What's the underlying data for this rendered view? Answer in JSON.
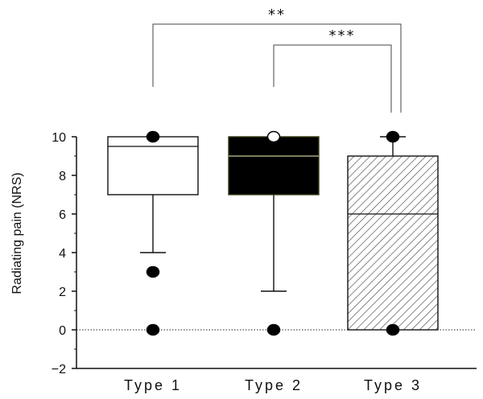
{
  "chart_data": {
    "type": "box",
    "ylabel": "Radiating pain (NRS)",
    "ylim": [
      -2,
      10
    ],
    "yticks": [
      "−2",
      "0",
      "2",
      "4",
      "6",
      "8",
      "10"
    ],
    "ytick_values": [
      -2,
      0,
      2,
      4,
      6,
      8,
      10
    ],
    "reference_line_y": 0,
    "categories": [
      "Type  1",
      "Type  2",
      "Type  3"
    ],
    "boxes": [
      {
        "category": "Type  1",
        "fill": "#ffffff",
        "pattern": "none",
        "whisker_low": 4,
        "q1": 7,
        "median": 9.5,
        "q3": 10,
        "whisker_high": 10,
        "outliers": [
          {
            "y": 10,
            "style": "filled"
          },
          {
            "y": 3,
            "style": "filled"
          },
          {
            "y": 0,
            "style": "filled"
          }
        ]
      },
      {
        "category": "Type  2",
        "fill": "#000000",
        "pattern": "none",
        "whisker_low": 2,
        "q1": 7,
        "median": 9,
        "q3": 10,
        "whisker_high": 10,
        "outliers": [
          {
            "y": 10,
            "style": "open"
          },
          {
            "y": 0,
            "style": "filled"
          }
        ]
      },
      {
        "category": "Type  3",
        "fill": "#ffffff",
        "pattern": "diagonal-hatch",
        "whisker_low": 0,
        "q1": 0,
        "median": 6,
        "q3": 9,
        "whisker_high": 10,
        "outliers": [
          {
            "y": 10,
            "style": "filled"
          },
          {
            "y": 0,
            "style": "filled"
          }
        ]
      }
    ],
    "significance": [
      {
        "from": "Type  1",
        "to": "Type  3",
        "label": "**"
      },
      {
        "from": "Type  2",
        "to": "Type  3",
        "label": "***"
      }
    ]
  }
}
